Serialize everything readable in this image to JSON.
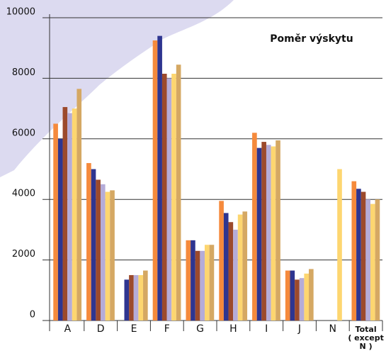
{
  "chart_data": {
    "type": "bar",
    "annotation": "Poměr výskytu",
    "categories": [
      "A",
      "D",
      "E",
      "F",
      "G",
      "H",
      "I",
      "J",
      "N",
      "Total\n( except N )"
    ],
    "series": [
      {
        "color": "#f58a3c",
        "values": [
          6500,
          5200,
          null,
          9250,
          2650,
          3950,
          6200,
          1650,
          null,
          4600
        ]
      },
      {
        "color": "#2e3590",
        "values": [
          6000,
          5000,
          1350,
          9400,
          2650,
          3550,
          5700,
          1650,
          null,
          4350
        ]
      },
      {
        "color": "#9c4a2c",
        "values": [
          7050,
          4650,
          1500,
          8150,
          2300,
          3250,
          5900,
          1350,
          null,
          4250
        ]
      },
      {
        "color": "#b5acd8",
        "values": [
          6850,
          4500,
          1500,
          8000,
          2300,
          3000,
          5800,
          1400,
          null,
          4000
        ]
      },
      {
        "color": "#fdd670",
        "values": [
          7000,
          4250,
          1500,
          8150,
          2500,
          3500,
          5750,
          1550,
          5000,
          3850
        ]
      },
      {
        "color": "#d5a863",
        "values": [
          7650,
          4300,
          1650,
          8450,
          2500,
          3600,
          5950,
          1700,
          null,
          4000
        ]
      }
    ],
    "ylim": [
      0,
      10000
    ],
    "yticks": [
      0,
      2000,
      4000,
      6000,
      8000,
      10000
    ],
    "grid": true
  }
}
